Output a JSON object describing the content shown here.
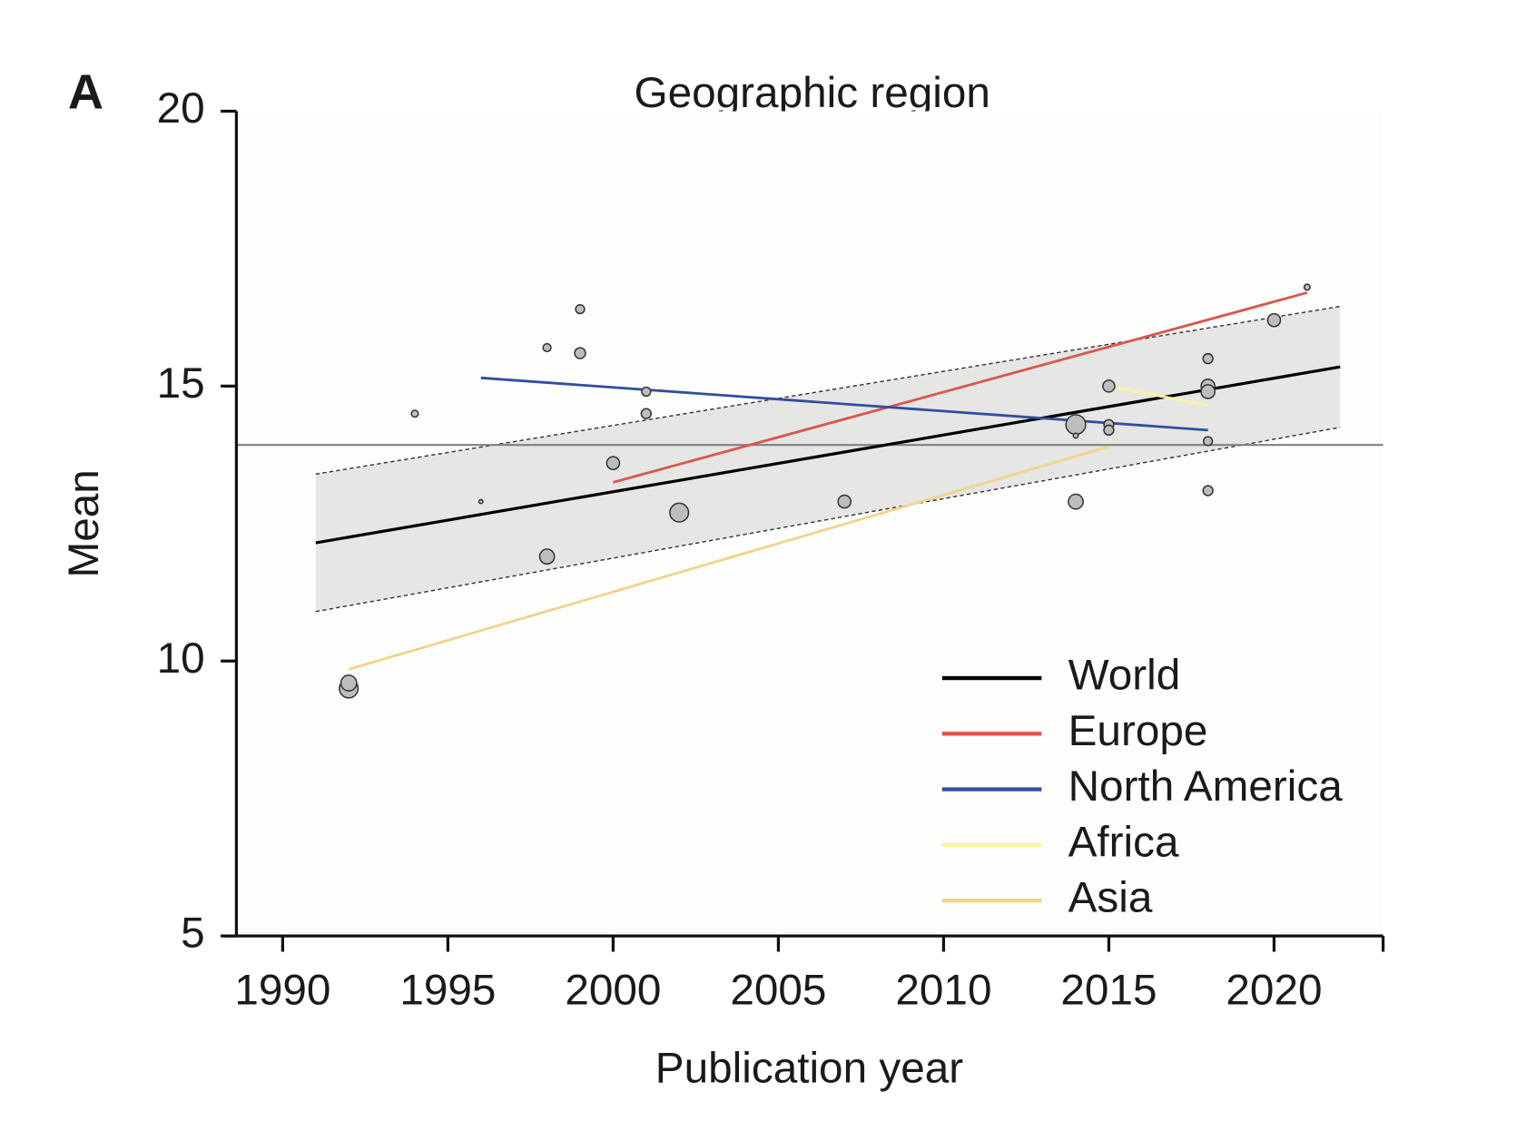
{
  "chart_data": {
    "type": "scatter",
    "panel_label": "A",
    "title": "Geographic region",
    "xlabel": "Publication year",
    "ylabel": "Mean",
    "xlim": [
      1988.6,
      2023.3
    ],
    "ylim": [
      5,
      20
    ],
    "xticks": [
      1990,
      1995,
      2000,
      2005,
      2010,
      2015,
      2020
    ],
    "yticks": [
      5,
      10,
      15,
      20
    ],
    "reference_line": 13.93,
    "band": {
      "x": [
        1991,
        2022
      ],
      "upper": [
        13.4,
        16.45
      ],
      "lower": [
        10.9,
        14.25
      ]
    },
    "points": {
      "color": "#bdbdbd",
      "x": [
        1992,
        1992,
        1994,
        1996,
        1998,
        1998,
        1999,
        1999,
        2000,
        2001,
        2001,
        2002,
        2007,
        2014,
        2014,
        2014,
        2015,
        2015,
        2015,
        2018,
        2018,
        2018,
        2018,
        2018,
        2020,
        2021
      ],
      "y": [
        9.5,
        9.6,
        14.5,
        12.9,
        15.7,
        11.9,
        16.4,
        15.6,
        13.6,
        14.9,
        14.5,
        12.7,
        12.9,
        14.3,
        14.1,
        12.9,
        15.0,
        14.3,
        14.2,
        15.5,
        15.0,
        14.9,
        14.0,
        13.1,
        16.2,
        16.8
      ],
      "sizes": [
        9.5,
        8,
        3.5,
        2,
        4,
        7.5,
        4.5,
        5.5,
        6.5,
        4.5,
        5,
        9.5,
        6.5,
        10,
        2.5,
        7.5,
        6,
        5,
        5,
        5,
        7,
        7,
        4.5,
        5,
        6.5,
        3
      ]
    },
    "series": [
      {
        "name": "World",
        "color": "#000000",
        "x": [
          1991,
          2022
        ],
        "values": [
          12.15,
          15.35
        ]
      },
      {
        "name": "Europe",
        "color": "#d9574c",
        "x": [
          2000,
          2021
        ],
        "values": [
          13.25,
          16.7
        ]
      },
      {
        "name": "North America",
        "color": "#2f4f9e",
        "x": [
          1996,
          2018
        ],
        "values": [
          15.15,
          14.2
        ]
      },
      {
        "name": "Africa",
        "color": "#fbf3a4",
        "x": [
          2015,
          2018
        ],
        "values": [
          15.0,
          14.65
        ]
      },
      {
        "name": "Asia",
        "color": "#f1d38a",
        "x": [
          1992,
          2015
        ],
        "values": [
          9.85,
          13.9
        ]
      }
    ]
  }
}
